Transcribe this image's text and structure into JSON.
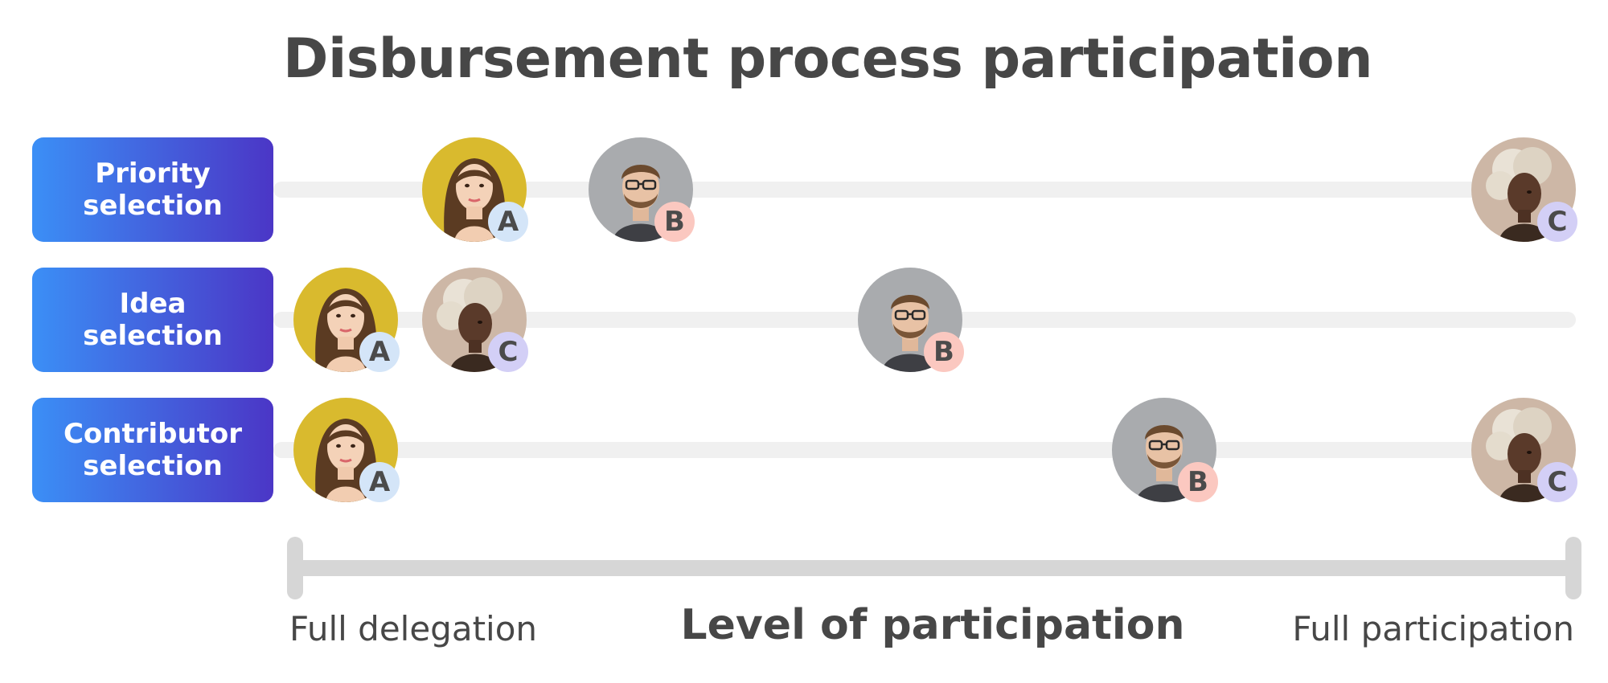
{
  "title": "Disbursement process participation",
  "rows": [
    {
      "label_line1": "Priority",
      "label_line2": "selection"
    },
    {
      "label_line1": "Idea",
      "label_line2": "selection"
    },
    {
      "label_line1": "Contributor",
      "label_line2": "selection"
    }
  ],
  "participants": {
    "A": {
      "badge": "A",
      "badge_color": "#d4e5f8",
      "bg_color": "#d9ba2e"
    },
    "B": {
      "badge": "B",
      "badge_color": "#fbc8c0",
      "bg_color": "#a9abae"
    },
    "C": {
      "badge": "C",
      "badge_color": "#d3cff6",
      "bg_color": "#cdb7a6"
    }
  },
  "axis": {
    "title": "Level of participation",
    "left_label": "Full delegation",
    "right_label": "Full participation"
  },
  "colors": {
    "label_gradient_start": "#3b8ff6",
    "label_gradient_end": "#4b36c6",
    "track": "#f0f0f0",
    "axis": "#d6d6d6"
  }
}
